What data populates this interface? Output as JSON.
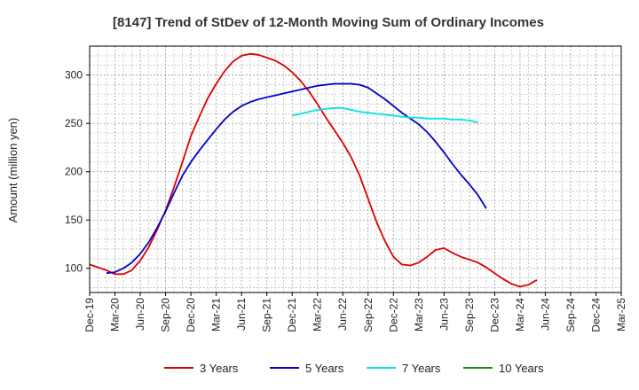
{
  "chart_data": {
    "type": "line",
    "title": "[8147]  Trend of StDev of 12-Month Moving Sum of Ordinary Incomes",
    "xlabel": "",
    "ylabel": "Amount (million yen)",
    "ylim": [
      75,
      330
    ],
    "y_ticks": [
      100,
      150,
      200,
      250,
      300
    ],
    "x_tick_labels": [
      "Dec-19",
      "Mar-20",
      "Jun-20",
      "Sep-20",
      "Dec-20",
      "Mar-21",
      "Jun-21",
      "Sep-21",
      "Dec-21",
      "Mar-22",
      "Jun-22",
      "Sep-22",
      "Dec-22",
      "Mar-23",
      "Jun-23",
      "Sep-23",
      "Dec-23",
      "Mar-24",
      "Jun-24",
      "Sep-24",
      "Dec-24",
      "Mar-25"
    ],
    "grid": true,
    "legend_position": "bottom",
    "series": [
      {
        "name": "3 Years",
        "color": "#dd0000",
        "start_index": 0,
        "values": [
          104,
          101,
          98,
          94,
          94,
          98,
          108,
          122,
          140,
          160,
          184,
          210,
          237,
          257,
          276,
          291,
          304,
          314,
          320,
          322,
          321,
          318,
          315,
          310,
          303,
          294,
          283,
          270,
          256,
          243,
          230,
          215,
          196,
          172,
          148,
          128,
          112,
          104,
          103,
          106,
          112,
          119,
          121,
          116,
          112,
          109,
          106,
          101,
          95,
          89,
          84,
          81,
          83,
          88
        ]
      },
      {
        "name": "5 Years",
        "color": "#0000cc",
        "start_index": 2,
        "values": [
          95,
          96,
          100,
          106,
          115,
          127,
          142,
          159,
          178,
          196,
          210,
          222,
          233,
          244,
          254,
          262,
          268,
          272,
          275,
          277,
          279,
          281,
          283,
          285,
          287,
          289,
          290,
          291,
          291,
          291,
          290,
          287,
          281,
          275,
          268,
          261,
          255,
          249,
          241,
          231,
          220,
          208,
          197,
          187,
          176,
          162
        ]
      },
      {
        "name": "7 Years",
        "color": "#00e5e5",
        "start_index": 24,
        "values": [
          258,
          260,
          262,
          264,
          265,
          266,
          266,
          264,
          262,
          261,
          260,
          259,
          258,
          257,
          256,
          256,
          255,
          255,
          255,
          254,
          254,
          253,
          251
        ]
      },
      {
        "name": "10 Years",
        "color": "#228822",
        "start_index": 0,
        "values": []
      }
    ]
  }
}
